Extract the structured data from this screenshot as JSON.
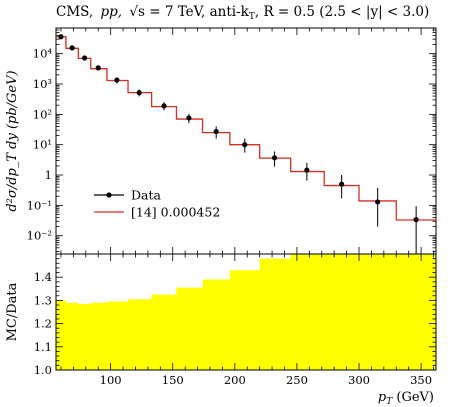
{
  "chart_data": [
    {
      "type": "scatter",
      "title_parts": {
        "experiment": "CMS,",
        "system": "pp,",
        "sqrt_s_prefix": "√s = 7 TeV, anti-k",
        "sqrt_s_sub": "T",
        "r_prefix": ", R = 0.5 (2.5 < |y| < 3.0)"
      },
      "ylabel": "d²σ/dp_T dy (pb/GeV)",
      "yscale": "log",
      "xlim": [
        56,
        362
      ],
      "ylim": [
        0.0025,
        70000
      ],
      "x_ticks": [
        50,
        100,
        150,
        200,
        250,
        300,
        350
      ],
      "y_ticks": [
        {
          "value": 10000,
          "label": "10⁴"
        },
        {
          "value": 1000,
          "label": "10³"
        },
        {
          "value": 100,
          "label": "10²"
        },
        {
          "value": 10,
          "label": "10¹"
        },
        {
          "value": 1,
          "label": "1"
        },
        {
          "value": 0.1,
          "label": "10⁻¹"
        },
        {
          "value": 0.01,
          "label": "10⁻²"
        }
      ],
      "legend": {
        "placement": "lower-left",
        "entries": [
          {
            "label": "Data",
            "style": "marker"
          },
          {
            "label": "[14] 0.000452",
            "style": "line"
          }
        ]
      },
      "colors": {
        "data": "#000000",
        "mc": "#d62d20"
      },
      "bin_edges": [
        56,
        64,
        74,
        84,
        97,
        114,
        133,
        153,
        174,
        196,
        220,
        245,
        272,
        300,
        330,
        362
      ],
      "mc_values": [
        36000,
        15000,
        7000,
        3200,
        1300,
        520,
        180,
        70,
        25,
        10,
        3.6,
        1.3,
        0.45,
        0.14,
        0.033
      ],
      "series": [
        {
          "name": "Data",
          "x": [
            60,
            69,
            79,
            90,
            105,
            123,
            143,
            163,
            185,
            208,
            232,
            258,
            286,
            315,
            346
          ],
          "y": [
            36000,
            15500,
            7200,
            3400,
            1350,
            520,
            190,
            76,
            27,
            10,
            3.7,
            1.45,
            0.5,
            0.13,
            0.034
          ],
          "yerr_low": [
            5000,
            2000,
            1000,
            600,
            300,
            130,
            55,
            25,
            11,
            4.5,
            1.8,
            0.8,
            0.33,
            0.11,
            0.032
          ],
          "yerr_high": [
            5000,
            2000,
            1000,
            600,
            300,
            140,
            60,
            28,
            13,
            6,
            2.3,
            1.1,
            0.5,
            0.25,
            0.06
          ]
        }
      ]
    },
    {
      "type": "area",
      "ylabel": "MC/Data",
      "xlabel_parts": {
        "base": "p",
        "sub": "T",
        "unit": " (GeV)"
      },
      "xlim": [
        56,
        362
      ],
      "ylim": [
        1.0,
        1.5
      ],
      "x_ticks": [
        50,
        100,
        150,
        200,
        250,
        300,
        350
      ],
      "y_ticks": [
        {
          "value": 1.0,
          "label": "1.0"
        },
        {
          "value": 1.1,
          "label": "1.1"
        },
        {
          "value": 1.2,
          "label": "1.2"
        },
        {
          "value": 1.3,
          "label": "1.3"
        },
        {
          "value": 1.4,
          "label": "1.4"
        }
      ],
      "band_color": "#ffff00",
      "reference_line": 1.0,
      "bin_edges": [
        56,
        64,
        74,
        84,
        97,
        114,
        133,
        153,
        174,
        196,
        220,
        245,
        272,
        300,
        330,
        362
      ],
      "band_upper": [
        1.3,
        1.29,
        1.285,
        1.29,
        1.295,
        1.305,
        1.325,
        1.355,
        1.39,
        1.43,
        1.48,
        1.51,
        1.51,
        1.51,
        1.51
      ]
    }
  ]
}
